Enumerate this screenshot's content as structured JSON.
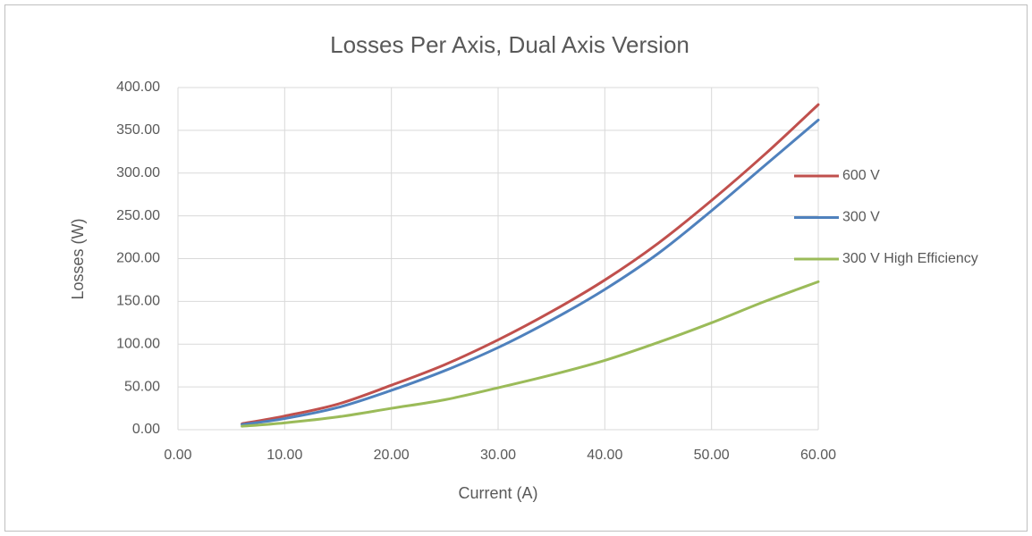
{
  "chart_data": {
    "type": "line",
    "title": "Losses Per Axis, Dual Axis Version",
    "xlabel": "Current (A)",
    "ylabel": "Losses (W)",
    "x": [
      6,
      10,
      15,
      20,
      25,
      30,
      35,
      40,
      45,
      50,
      55,
      60
    ],
    "series": [
      {
        "name": "600 V",
        "color": "#c0504d",
        "values": [
          7,
          16,
          30,
          52,
          76,
          105,
          138,
          175,
          218,
          268,
          322,
          380
        ]
      },
      {
        "name": "300 V",
        "color": "#4f81bd",
        "values": [
          6,
          13,
          26,
          46,
          69,
          96,
          128,
          164,
          206,
          256,
          309,
          362
        ]
      },
      {
        "name": "300 V High Efficiency",
        "color": "#9bbb59",
        "values": [
          4,
          8,
          15,
          25,
          35,
          49,
          64,
          81,
          102,
          125,
          150,
          173
        ]
      }
    ],
    "xlim": [
      0,
      60
    ],
    "xticks": [
      {
        "value": 0,
        "label": "0.00"
      },
      {
        "value": 10,
        "label": "10.00"
      },
      {
        "value": 20,
        "label": "20.00"
      },
      {
        "value": 30,
        "label": "30.00"
      },
      {
        "value": 40,
        "label": "40.00"
      },
      {
        "value": 50,
        "label": "50.00"
      },
      {
        "value": 60,
        "label": "60.00"
      }
    ],
    "ylim": [
      0,
      400
    ],
    "yticks": [
      {
        "value": 0,
        "label": "0.00"
      },
      {
        "value": 50,
        "label": "50.00"
      },
      {
        "value": 100,
        "label": "100.00"
      },
      {
        "value": 150,
        "label": "150.00"
      },
      {
        "value": 200,
        "label": "200.00"
      },
      {
        "value": 250,
        "label": "250.00"
      },
      {
        "value": 300,
        "label": "300.00"
      },
      {
        "value": 350,
        "label": "350.00"
      },
      {
        "value": 400,
        "label": "400.00"
      }
    ],
    "grid": true,
    "legend": "right"
  }
}
